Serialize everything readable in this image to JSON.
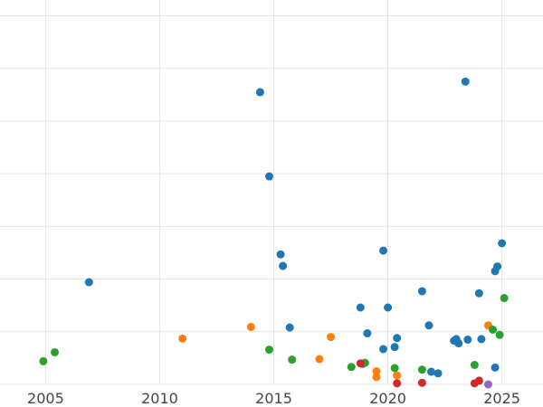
{
  "chart_data": {
    "type": "scatter",
    "title": "",
    "xlabel": "",
    "ylabel": "",
    "xlim": [
      2003.0,
      2026.8
    ],
    "ylim": [
      0,
      7.3
    ],
    "x_ticks": [
      2005,
      2010,
      2015,
      2020,
      2025
    ],
    "x_tick_labels": [
      "2005",
      "2010",
      "2015",
      "2020",
      "2025"
    ],
    "y_gridlines": [
      0,
      1,
      2,
      3,
      4,
      5,
      6,
      7
    ],
    "grid": true,
    "legend": "none",
    "series": [
      {
        "color": "#1f77b4",
        "points": [
          [
            2006.9,
            1.94
          ],
          [
            2014.4,
            5.55
          ],
          [
            2014.8,
            3.95
          ],
          [
            2015.3,
            2.47
          ],
          [
            2015.4,
            2.25
          ],
          [
            2015.7,
            1.08
          ],
          [
            2018.8,
            1.46
          ],
          [
            2019.1,
            0.97
          ],
          [
            2018.9,
            0.39
          ],
          [
            2019.8,
            2.54
          ],
          [
            2019.8,
            0.67
          ],
          [
            2020.0,
            1.46
          ],
          [
            2020.3,
            0.71
          ],
          [
            2020.4,
            0.88
          ],
          [
            2021.5,
            1.77
          ],
          [
            2021.8,
            1.12
          ],
          [
            2021.9,
            0.24
          ],
          [
            2022.2,
            0.21
          ],
          [
            2022.9,
            0.83
          ],
          [
            2023.0,
            0.86
          ],
          [
            2023.1,
            0.78
          ],
          [
            2023.5,
            0.85
          ],
          [
            2023.4,
            5.75
          ],
          [
            2024.0,
            1.73
          ],
          [
            2024.1,
            0.86
          ],
          [
            2024.7,
            0.32
          ],
          [
            2024.7,
            2.15
          ],
          [
            2024.8,
            2.24
          ],
          [
            2025.0,
            2.68
          ]
        ]
      },
      {
        "color": "#ff7f0e",
        "points": [
          [
            2011.0,
            0.87
          ],
          [
            2014.0,
            1.09
          ],
          [
            2017.0,
            0.48
          ],
          [
            2017.5,
            0.9
          ],
          [
            2019.5,
            0.25
          ],
          [
            2019.5,
            0.14
          ],
          [
            2020.4,
            0.17
          ],
          [
            2024.4,
            1.12
          ]
        ]
      },
      {
        "color": "#2ca02c",
        "points": [
          [
            2004.9,
            0.44
          ],
          [
            2005.4,
            0.61
          ],
          [
            2014.8,
            0.66
          ],
          [
            2015.8,
            0.47
          ],
          [
            2018.4,
            0.33
          ],
          [
            2019.0,
            0.41
          ],
          [
            2020.3,
            0.31
          ],
          [
            2021.5,
            0.28
          ],
          [
            2023.8,
            0.37
          ],
          [
            2024.6,
            1.04
          ],
          [
            2024.9,
            0.94
          ],
          [
            2025.1,
            1.64
          ]
        ]
      },
      {
        "color": "#d62728",
        "points": [
          [
            2018.8,
            0.4
          ],
          [
            2020.4,
            0.02
          ],
          [
            2021.5,
            0.03
          ],
          [
            2023.8,
            0.02
          ],
          [
            2024.0,
            0.07
          ]
        ]
      },
      {
        "color": "#9467bd",
        "points": [
          [
            2024.4,
            0.0
          ]
        ]
      }
    ]
  }
}
